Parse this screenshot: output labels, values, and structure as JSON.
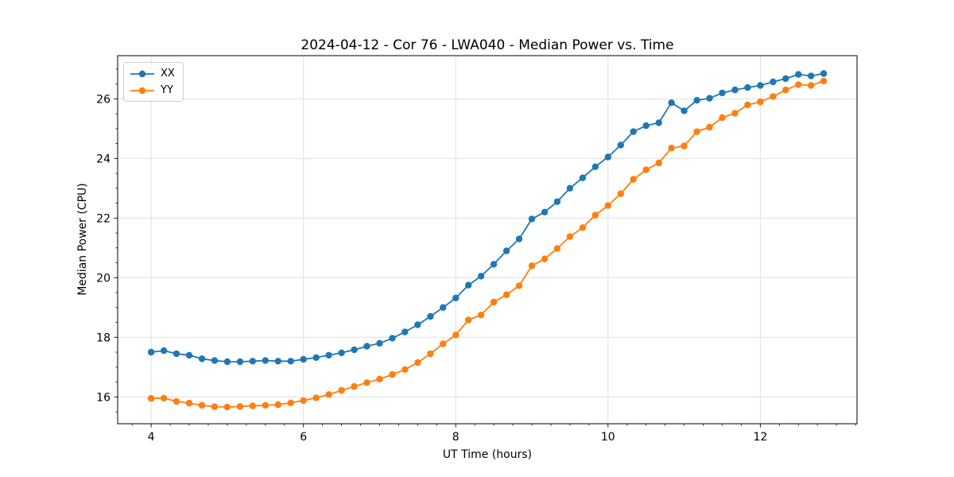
{
  "title": "2024-04-12 - Cor 76 - LWA040 - Median Power vs. Time",
  "chart_data": {
    "type": "line",
    "title": "2024-04-12 - Cor 76 - LWA040 - Median Power vs. Time",
    "xlabel": "UT Time (hours)",
    "ylabel": "Median Power (CPU)",
    "xlim": [
      3.56,
      13.27
    ],
    "ylim": [
      15.1,
      27.45
    ],
    "xticks": [
      4,
      6,
      8,
      10,
      12
    ],
    "yticks": [
      16,
      18,
      20,
      22,
      24,
      26
    ],
    "minor_x_step": 0.25,
    "minor_y_step": 0.5,
    "grid": true,
    "grid_color": "#e0e0e0",
    "legend_position": "upper left",
    "marker": "o",
    "x": [
      4.0,
      4.167,
      4.333,
      4.5,
      4.667,
      4.833,
      5.0,
      5.167,
      5.333,
      5.5,
      5.667,
      5.833,
      6.0,
      6.167,
      6.333,
      6.5,
      6.667,
      6.833,
      7.0,
      7.167,
      7.333,
      7.5,
      7.667,
      7.833,
      8.0,
      8.167,
      8.333,
      8.5,
      8.667,
      8.833,
      9.0,
      9.167,
      9.333,
      9.5,
      9.667,
      9.833,
      10.0,
      10.167,
      10.333,
      10.5,
      10.667,
      10.833,
      11.0,
      11.167,
      11.333,
      11.5,
      11.667,
      11.833,
      12.0,
      12.167,
      12.333,
      12.5,
      12.667,
      12.833
    ],
    "series": [
      {
        "name": "XX",
        "color": "#1f77b4",
        "values": [
          17.5,
          17.55,
          17.45,
          17.4,
          17.28,
          17.22,
          17.18,
          17.18,
          17.2,
          17.22,
          17.2,
          17.2,
          17.26,
          17.32,
          17.4,
          17.48,
          17.58,
          17.7,
          17.8,
          17.97,
          18.18,
          18.42,
          18.7,
          19.0,
          19.32,
          19.75,
          20.05,
          20.45,
          20.9,
          21.3,
          21.97,
          22.2,
          22.55,
          23.0,
          23.35,
          23.72,
          24.05,
          24.45,
          24.9,
          25.1,
          25.2,
          25.87,
          25.6,
          25.95,
          26.02,
          26.2,
          26.3,
          26.38,
          26.45,
          26.57,
          26.68,
          26.82,
          26.77,
          26.85
        ]
      },
      {
        "name": "YY",
        "color": "#ff7f0e",
        "values": [
          15.95,
          15.96,
          15.85,
          15.79,
          15.72,
          15.67,
          15.66,
          15.68,
          15.7,
          15.72,
          15.74,
          15.8,
          15.88,
          15.97,
          16.08,
          16.22,
          16.35,
          16.48,
          16.6,
          16.75,
          16.92,
          17.15,
          17.45,
          17.78,
          18.08,
          18.58,
          18.75,
          19.18,
          19.43,
          19.73,
          20.4,
          20.63,
          20.98,
          21.38,
          21.68,
          22.1,
          22.42,
          22.82,
          23.3,
          23.62,
          23.85,
          24.35,
          24.42,
          24.9,
          25.05,
          25.37,
          25.52,
          25.8,
          25.9,
          26.08,
          26.3,
          26.48,
          26.45,
          26.6
        ]
      }
    ]
  }
}
